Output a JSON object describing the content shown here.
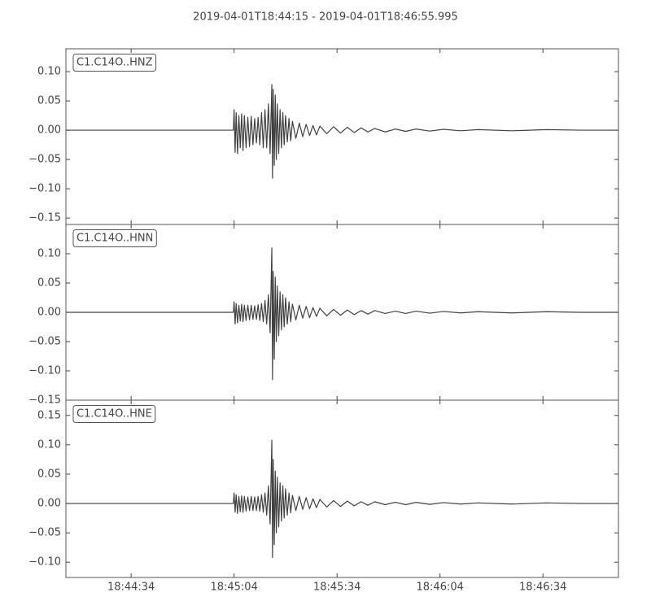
{
  "title": "2019-04-01T18:44:15  -  2019-04-01T18:46:55.995",
  "chart_data": [
    {
      "type": "line",
      "x": [
        0,
        48.8,
        49,
        49.3,
        49.6,
        50,
        50.4,
        50.8,
        51.2,
        51.6,
        52,
        52.5,
        53,
        53.5,
        54,
        54.5,
        55,
        55.5,
        56,
        56.5,
        57,
        57.5,
        58,
        58.5,
        59,
        59.5,
        60,
        60.2,
        60.4,
        60.7,
        61,
        61.3,
        61.6,
        62,
        62.4,
        62.8,
        63.2,
        63.6,
        64,
        64.5,
        65,
        65.5,
        66,
        67,
        68,
        69,
        70,
        71,
        72,
        73,
        74,
        76,
        78,
        80,
        82,
        84,
        86,
        88,
        90,
        93,
        96,
        99,
        102,
        106,
        110,
        115,
        120,
        130,
        140,
        150,
        160.995
      ],
      "series": [
        {
          "name": "C1.C14O..HNZ",
          "color": "#404040",
          "values": [
            0,
            0,
            0.035,
            -0.038,
            0.03,
            -0.04,
            0.025,
            -0.03,
            0.028,
            -0.035,
            0.025,
            -0.03,
            0.022,
            -0.028,
            0.024,
            -0.025,
            0.02,
            -0.022,
            0.022,
            -0.025,
            0.03,
            -0.03,
            0.035,
            -0.03,
            0.045,
            -0.04,
            0.078,
            -0.082,
            0.07,
            -0.06,
            0.06,
            -0.05,
            0.045,
            -0.04,
            0.035,
            -0.03,
            0.03,
            -0.025,
            0.025,
            -0.02,
            0.02,
            -0.018,
            0.015,
            -0.014,
            0.012,
            -0.011,
            0.01,
            -0.009,
            0.008,
            -0.008,
            0.007,
            -0.006,
            0.006,
            -0.005,
            0.005,
            -0.004,
            0.004,
            -0.003,
            0.003,
            -0.003,
            0.002,
            -0.002,
            0.002,
            -0.0015,
            0.0015,
            -0.001,
            0.001,
            -0.001,
            0.001,
            0,
            0
          ]
        }
      ],
      "xlim": [
        0,
        160.995
      ],
      "ylim": [
        -0.161,
        0.139
      ],
      "yticks": [
        {
          "value": -0.15,
          "label": "−0.15"
        },
        {
          "value": -0.1,
          "label": "−0.10"
        },
        {
          "value": -0.05,
          "label": "−0.05"
        },
        {
          "value": 0,
          "label": "0.00"
        },
        {
          "value": 0.05,
          "label": "0.05"
        },
        {
          "value": 0.1,
          "label": "0.10"
        }
      ]
    },
    {
      "type": "line",
      "x": [
        0,
        48.8,
        49,
        49.3,
        49.6,
        50,
        50.4,
        50.8,
        51.2,
        51.6,
        52,
        52.5,
        53,
        53.5,
        54,
        54.5,
        55,
        55.5,
        56,
        56.5,
        57,
        57.5,
        58,
        58.5,
        59,
        59.5,
        60,
        60.2,
        60.4,
        60.7,
        61,
        61.3,
        61.6,
        62,
        62.4,
        62.8,
        63.2,
        63.6,
        64,
        64.5,
        65,
        65.5,
        66,
        67,
        68,
        69,
        70,
        71,
        72,
        73,
        74,
        76,
        78,
        80,
        82,
        84,
        86,
        88,
        90,
        93,
        96,
        99,
        102,
        106,
        110,
        115,
        120,
        130,
        140,
        150,
        160.995
      ],
      "series": [
        {
          "name": "C1.C14O..HNN",
          "color": "#404040",
          "values": [
            0,
            0,
            0.018,
            -0.02,
            0.015,
            -0.018,
            0.012,
            -0.015,
            0.014,
            -0.016,
            0.012,
            -0.014,
            0.012,
            -0.013,
            0.012,
            -0.012,
            0.011,
            -0.012,
            0.013,
            -0.014,
            0.015,
            -0.016,
            0.02,
            -0.02,
            0.03,
            -0.035,
            0.11,
            -0.115,
            0.07,
            -0.08,
            0.06,
            -0.05,
            0.045,
            -0.04,
            0.035,
            -0.03,
            0.03,
            -0.025,
            0.025,
            -0.02,
            0.018,
            -0.016,
            0.014,
            -0.013,
            0.012,
            -0.01,
            0.01,
            -0.009,
            0.008,
            -0.007,
            0.007,
            -0.006,
            0.005,
            -0.005,
            0.004,
            -0.004,
            0.003,
            -0.003,
            0.003,
            -0.002,
            0.002,
            -0.002,
            0.002,
            -0.0015,
            0.0015,
            -0.001,
            0.001,
            -0.001,
            0.001,
            0,
            0
          ]
        }
      ],
      "xlim": [
        0,
        160.995
      ],
      "ylim": [
        -0.15,
        0.15
      ],
      "yticks": [
        {
          "value": -0.15,
          "label": "−0.15"
        },
        {
          "value": -0.1,
          "label": "−0.10"
        },
        {
          "value": -0.05,
          "label": "−0.05"
        },
        {
          "value": 0,
          "label": "0.00"
        },
        {
          "value": 0.05,
          "label": "0.05"
        },
        {
          "value": 0.1,
          "label": "0.10"
        }
      ]
    },
    {
      "type": "line",
      "x": [
        0,
        48.8,
        49,
        49.3,
        49.6,
        50,
        50.4,
        50.8,
        51.2,
        51.6,
        52,
        52.5,
        53,
        53.5,
        54,
        54.5,
        55,
        55.5,
        56,
        56.5,
        57,
        57.5,
        58,
        58.5,
        59,
        59.5,
        60,
        60.2,
        60.4,
        60.7,
        61,
        61.3,
        61.6,
        62,
        62.4,
        62.8,
        63.2,
        63.6,
        64,
        64.5,
        65,
        65.5,
        66,
        67,
        68,
        69,
        70,
        71,
        72,
        73,
        74,
        76,
        78,
        80,
        82,
        84,
        86,
        88,
        90,
        93,
        96,
        99,
        102,
        106,
        110,
        115,
        120,
        130,
        140,
        150,
        160.995
      ],
      "series": [
        {
          "name": "C1.C14O..HNE",
          "color": "#404040",
          "values": [
            0,
            0,
            0.018,
            -0.015,
            0.015,
            -0.017,
            0.012,
            -0.014,
            0.013,
            -0.015,
            0.012,
            -0.013,
            0.011,
            -0.012,
            0.012,
            -0.012,
            0.011,
            -0.012,
            0.012,
            -0.013,
            0.015,
            -0.015,
            0.018,
            -0.02,
            0.03,
            -0.035,
            0.108,
            -0.092,
            0.075,
            -0.07,
            0.055,
            -0.05,
            0.045,
            -0.04,
            0.035,
            -0.03,
            0.03,
            -0.025,
            0.025,
            -0.02,
            0.018,
            -0.016,
            0.014,
            -0.012,
            0.012,
            -0.01,
            0.01,
            -0.009,
            0.008,
            -0.007,
            0.007,
            -0.006,
            0.005,
            -0.005,
            0.004,
            -0.004,
            0.003,
            -0.003,
            0.003,
            -0.002,
            0.002,
            -0.002,
            0.002,
            -0.0015,
            0.0015,
            -0.001,
            0.001,
            -0.001,
            0.001,
            0,
            0
          ]
        }
      ],
      "xlim": [
        0,
        160.995
      ],
      "ylim": [
        -0.126,
        0.176
      ],
      "yticks": [
        {
          "value": -0.1,
          "label": "−0.10"
        },
        {
          "value": -0.05,
          "label": "−0.05"
        },
        {
          "value": 0,
          "label": "0.00"
        },
        {
          "value": 0.05,
          "label": "0.05"
        },
        {
          "value": 0.1,
          "label": "0.10"
        },
        {
          "value": 0.15,
          "label": "0.15"
        }
      ],
      "xticks": [
        {
          "value": 19,
          "label": "18:44:34"
        },
        {
          "value": 49,
          "label": "18:45:04"
        },
        {
          "value": 79,
          "label": "18:45:34"
        },
        {
          "value": 109,
          "label": "18:46:04"
        },
        {
          "value": 139,
          "label": "18:46:34"
        }
      ]
    }
  ]
}
